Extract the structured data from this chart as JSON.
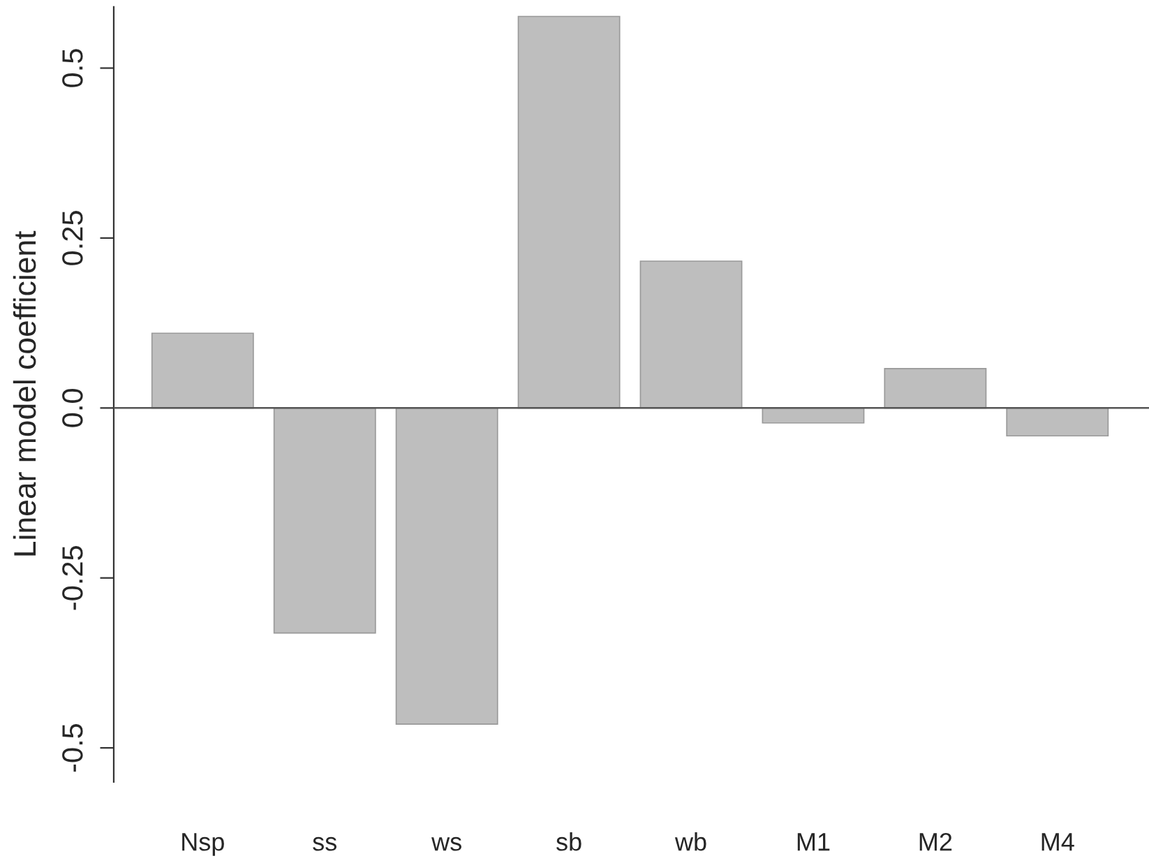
{
  "chart_data": {
    "type": "bar",
    "ylabel": "Linear model coefficient",
    "categories": [
      "Nsp",
      "ss",
      "ws",
      "sb",
      "wb",
      "M1",
      "M2",
      "M4"
    ],
    "values": [
      0.11,
      -0.331,
      -0.465,
      0.576,
      0.216,
      -0.022,
      0.058,
      -0.041
    ],
    "color": "#bebebe",
    "ylim": [
      -0.55,
      0.59
    ],
    "yticks": [
      {
        "value": -0.5,
        "label": "-0.5"
      },
      {
        "value": -0.25,
        "label": "-0.25"
      },
      {
        "value": 0.0,
        "label": "0.0"
      },
      {
        "value": 0.25,
        "label": "0.25"
      },
      {
        "value": 0.5,
        "label": "0.5"
      }
    ],
    "ref_lines": [
      {
        "axis": "y",
        "value": 0,
        "color": "#555555"
      }
    ],
    "grid": false,
    "legend": false
  }
}
